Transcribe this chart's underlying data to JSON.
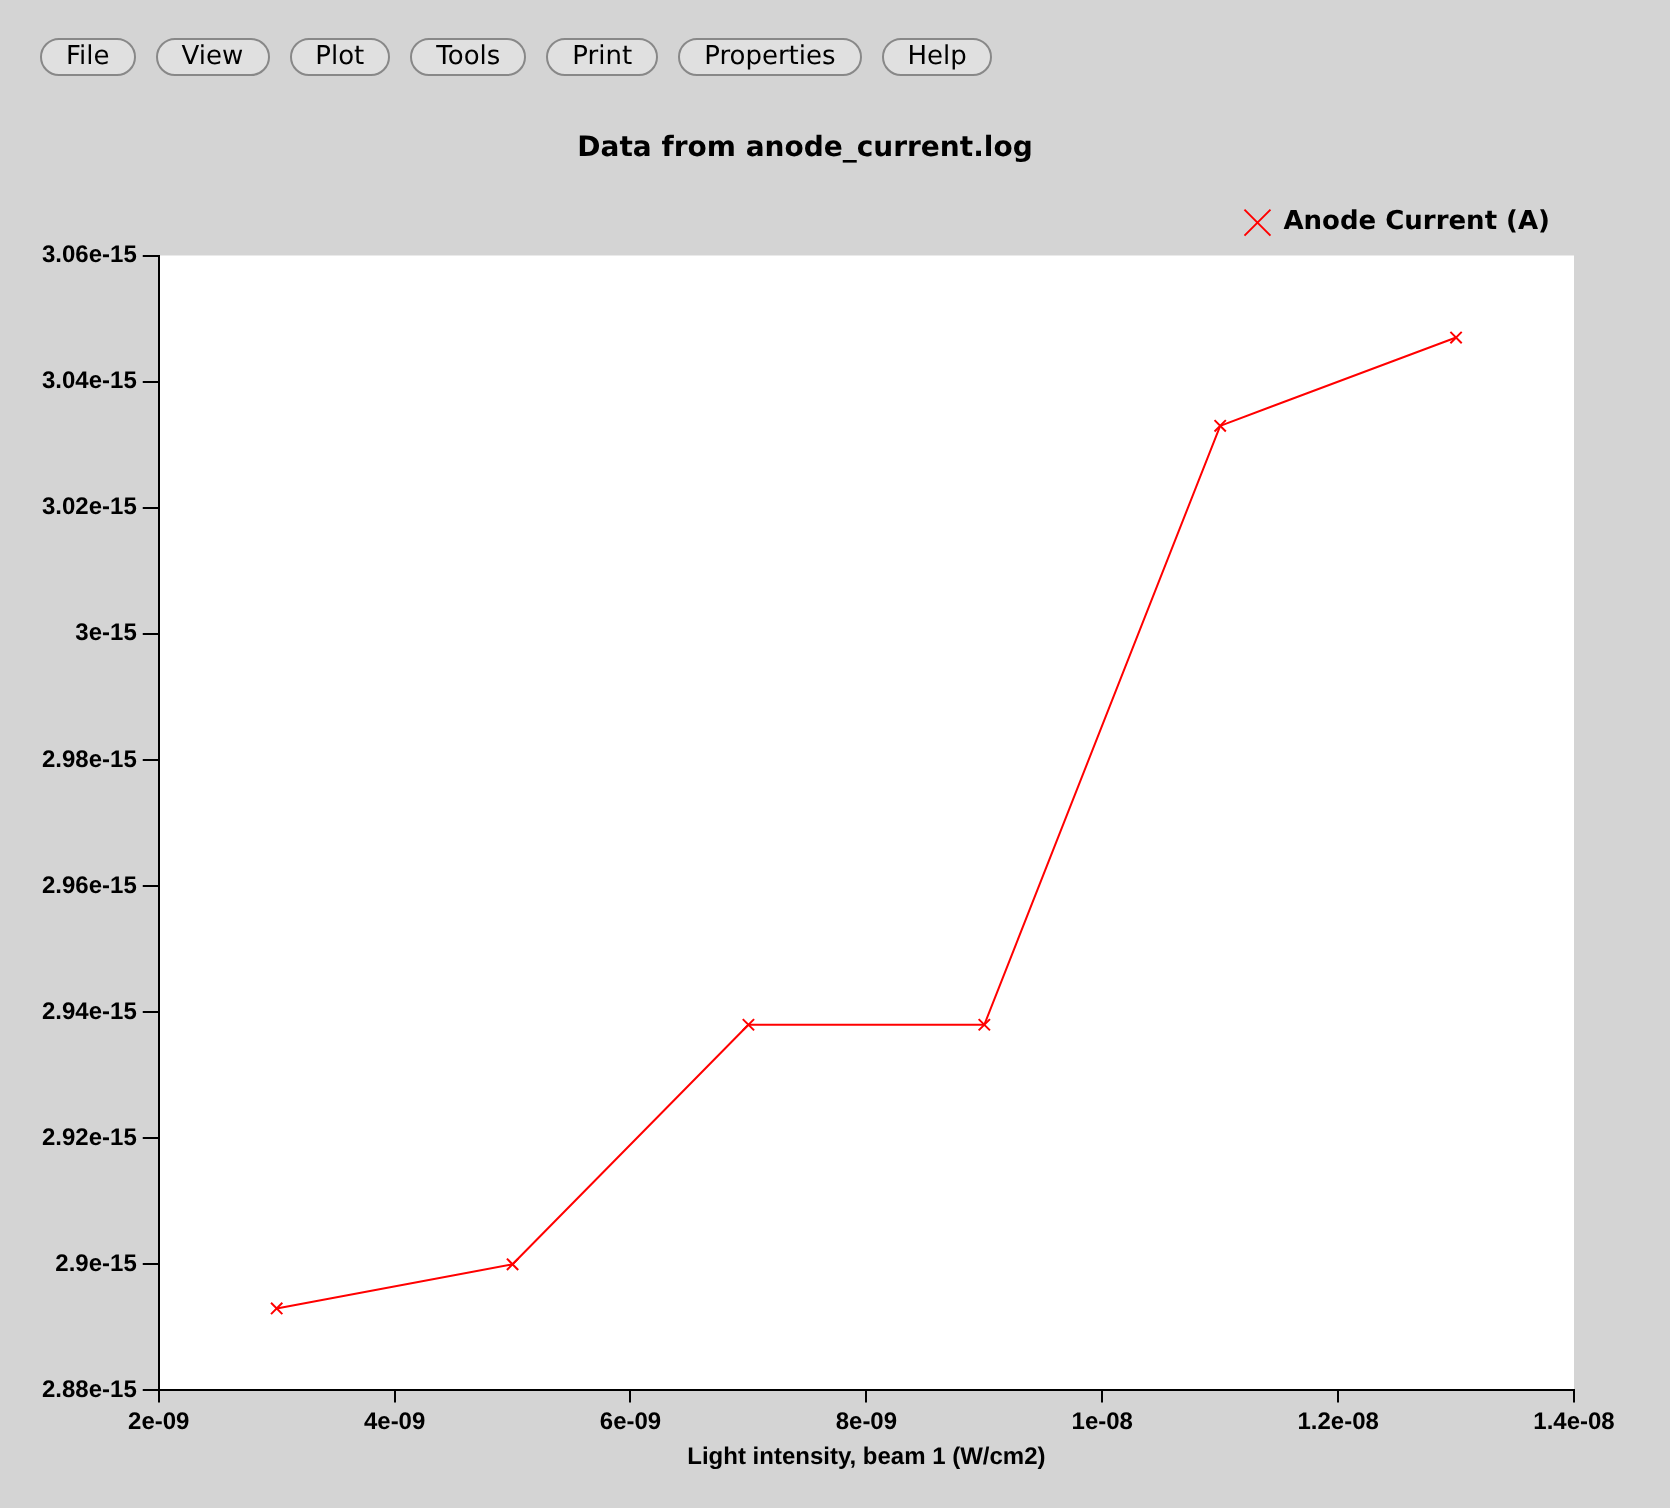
{
  "chart_data": {
    "type": "line",
    "title": "Data from anode_current.log",
    "xlabel": "Light intensity, beam 1 (W/cm2)",
    "x": [
      3e-09,
      5e-09,
      7e-09,
      9e-09,
      1.1e-08,
      1.3e-08
    ],
    "series": [
      {
        "name": "Anode Current (A)",
        "color": "#ff0000",
        "values": [
          2.893e-15,
          2.9e-15,
          2.938e-15,
          2.938e-15,
          3.033e-15,
          3.047e-15
        ]
      }
    ],
    "xlim": [
      2e-09,
      1.4e-08
    ],
    "xticks": [
      {
        "value": 2e-09,
        "label": "2e-09"
      },
      {
        "value": 4e-09,
        "label": "4e-09"
      },
      {
        "value": 6e-09,
        "label": "6e-09"
      },
      {
        "value": 8e-09,
        "label": "8e-09"
      },
      {
        "value": 1e-08,
        "label": "1e-08"
      },
      {
        "value": 1.2e-08,
        "label": "1.2e-08"
      },
      {
        "value": 1.4e-08,
        "label": "1.4e-08"
      }
    ],
    "ylim": [
      2.88e-15,
      3.06e-15
    ],
    "yticks": [
      2.88e-15,
      2.9e-15,
      2.92e-15,
      2.94e-15,
      2.96e-15,
      2.98e-15,
      3e-15,
      3.02e-15,
      3.04e-15,
      3.06e-15
    ],
    "grid": false,
    "legend": "top right",
    "marker": "cross",
    "line_style": "solid",
    "annotations": [
      "File",
      "View",
      "Plot",
      "Tools",
      "Print",
      "Properties",
      "Help"
    ]
  }
}
